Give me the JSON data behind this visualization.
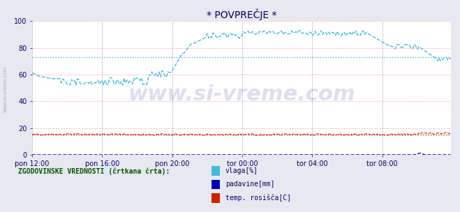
{
  "title": "* POVPREČJE *",
  "bg_color": "#e8e8f0",
  "plot_bg_color": "#ffffff",
  "grid_color_h": "#ffaaaa",
  "grid_color_v": "#aaaacc",
  "xlabel_color": "#000066",
  "watermark": "www.si-vreme.com",
  "watermark_color": "#000088",
  "x_ticks_labels": [
    "pon 12:00",
    "pon 16:00",
    "pon 20:00",
    "tor 00:00",
    "tor 04:00",
    "tor 08:00"
  ],
  "x_ticks_pos": [
    0,
    48,
    96,
    144,
    192,
    240
  ],
  "ylim": [
    0,
    100
  ],
  "yticks": [
    0,
    20,
    40,
    60,
    80,
    100
  ],
  "total_points": 288,
  "vlaga_color": "#44bbdd",
  "padavine_color": "#0000bb",
  "rosisce_color": "#cc2200",
  "legend_label_1": "vlaga[%]",
  "legend_label_2": "padavine[mm]",
  "legend_label_3": "temp. rosišča[C]",
  "legend_text": "ZGODOVINSKE VREDNOSTI (črtkana črta):",
  "arrow_color": "#cc0000",
  "title_color": "#000066",
  "left_label": "www.si-vreme.com",
  "left_label_color": "#aaaacc"
}
